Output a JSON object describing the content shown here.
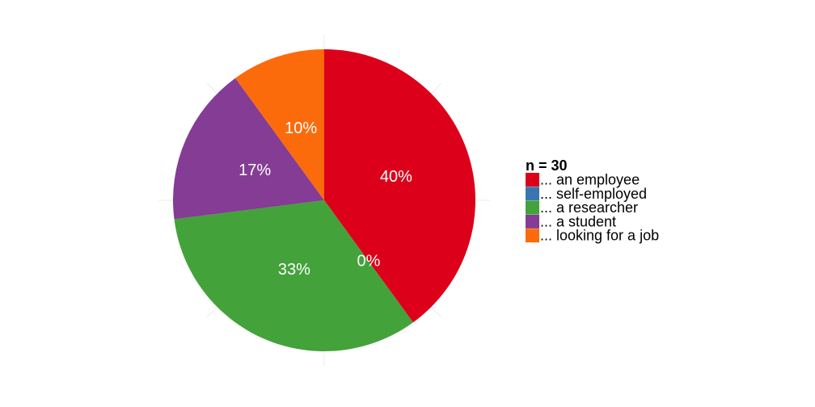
{
  "chart_data": {
    "type": "pie",
    "legend_title": "n = 30",
    "legend_position": "right",
    "categories": [
      "... an employee",
      "... self-employed",
      "... a researcher",
      "... a student",
      "... looking for a job"
    ],
    "values": [
      40,
      0,
      33,
      17,
      10
    ],
    "labels": [
      "40%",
      "0%",
      "33%",
      "17%",
      "10%"
    ],
    "colors": [
      "#dc001a",
      "#3a75b0",
      "#43a23a",
      "#843c94",
      "#fc6b0b"
    ]
  }
}
